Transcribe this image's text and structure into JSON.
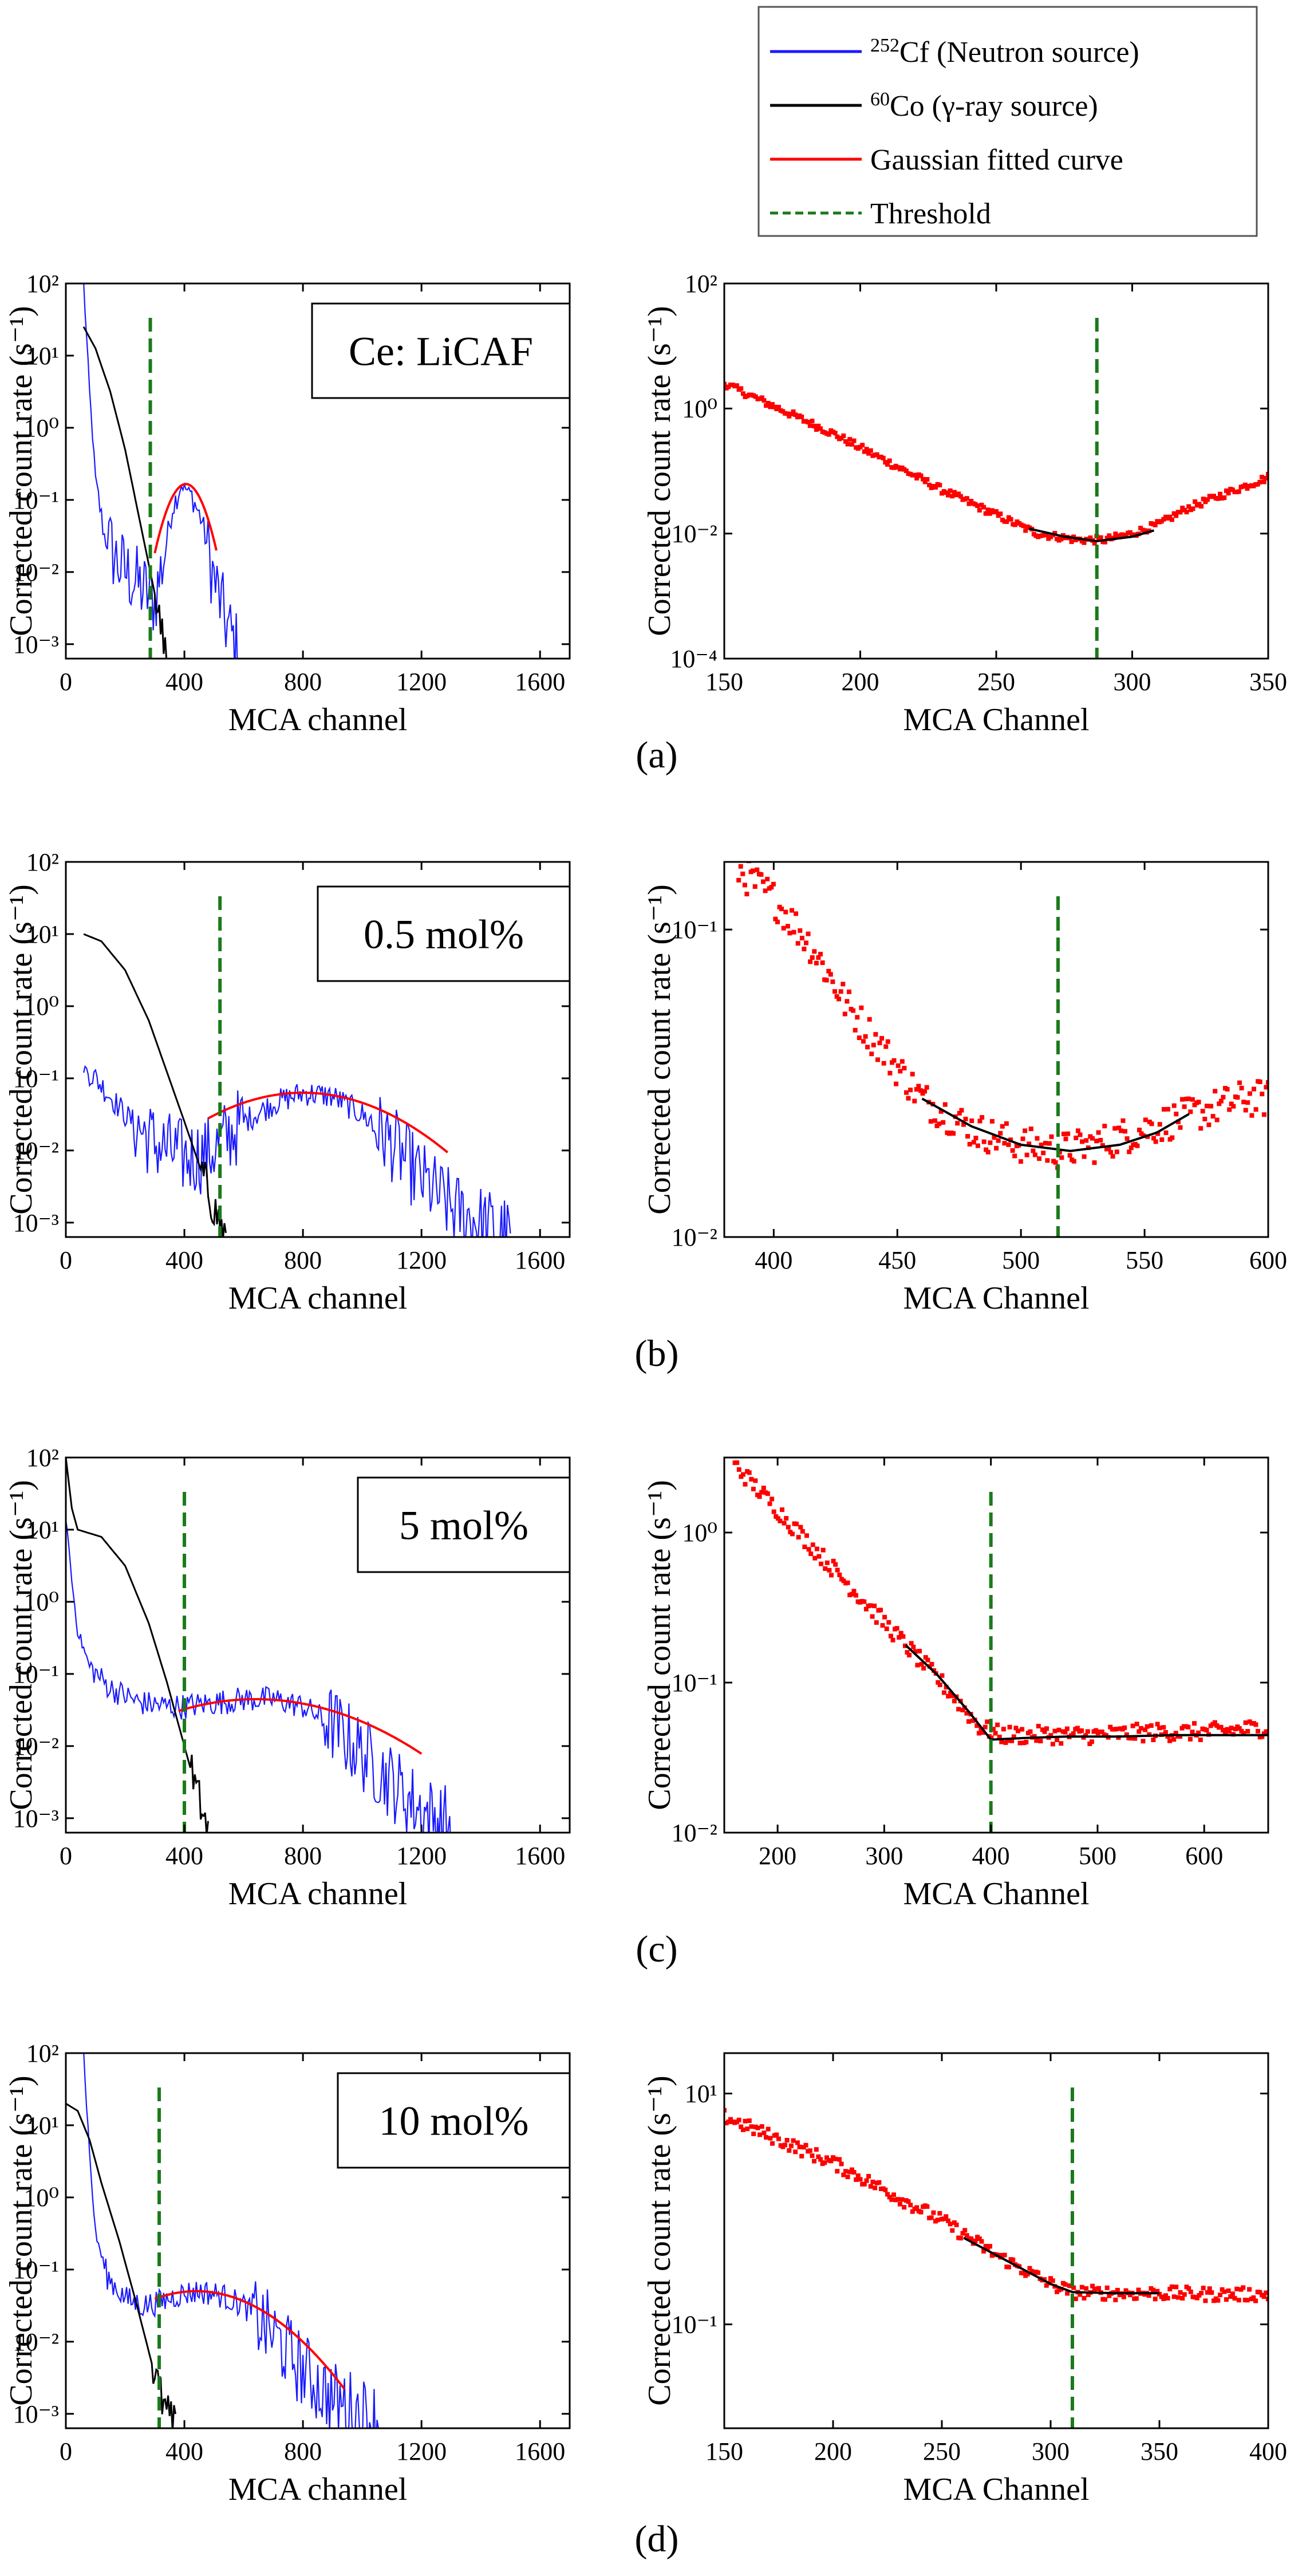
{
  "legend": {
    "items": [
      {
        "sup": "252",
        "text": "Cf (Neutron source)",
        "color": "#1a1aff",
        "style": "solid"
      },
      {
        "sup": "60",
        "text": "Co (γ-ray source)",
        "color": "#000000",
        "style": "solid"
      },
      {
        "sup": "",
        "text": "Gaussian fitted curve",
        "color": "#ff0000",
        "style": "solid"
      },
      {
        "sup": "",
        "text": "Threshold",
        "color": "#1a7a1a",
        "style": "dashed"
      }
    ]
  },
  "colors": {
    "neutron": "#1a1aff",
    "gamma": "#000000",
    "fit": "#ff0000",
    "threshold": "#1a7a1a",
    "points": "#ff0000"
  },
  "chart_data": [
    {
      "id": "a-left",
      "type": "line",
      "panel": "(a)",
      "annotation": "Ce: LiCAF",
      "xlabel": "MCA channel",
      "ylabel": "Corrected count rate (s⁻¹)",
      "xlim": [
        0,
        1700
      ],
      "ylim_log10": [
        -3.2,
        2
      ],
      "xticks": [
        0,
        400,
        800,
        1200,
        1600
      ],
      "yticks": [
        {
          "label": "10⁻³",
          "exp": -3
        },
        {
          "label": "10⁻²",
          "exp": -2
        },
        {
          "label": "10⁻¹",
          "exp": -1
        },
        {
          "label": "10⁰",
          "exp": 0
        },
        {
          "label": "10¹",
          "exp": 1
        },
        {
          "label": "10²",
          "exp": 2
        }
      ],
      "threshold": 285,
      "gamma": {
        "x": [
          60,
          100,
          150,
          200,
          250,
          300,
          340
        ],
        "log10y": [
          1.4,
          1.1,
          0.5,
          -0.3,
          -1.3,
          -2.3,
          -3.2
        ]
      },
      "neutron": {
        "x": [
          60,
          80,
          100,
          130,
          180,
          250,
          300,
          330,
          360,
          390,
          420,
          460,
          500,
          540,
          580
        ],
        "log10y": [
          2.0,
          0.5,
          -0.7,
          -1.5,
          -1.9,
          -2.2,
          -2.4,
          -1.8,
          -1.1,
          -0.8,
          -0.9,
          -1.3,
          -2.1,
          -2.7,
          -3.1
        ]
      },
      "fit": {
        "center": 405,
        "sigma": 50,
        "peak_log10": -0.78,
        "x_range": [
          300,
          510
        ]
      }
    },
    {
      "id": "a-right",
      "type": "scatter",
      "panel": "",
      "xlabel": "MCA Channel",
      "ylabel": "Corrected count rate (s⁻¹)",
      "xlim": [
        150,
        350
      ],
      "ylim_log10": [
        -4,
        2
      ],
      "xticks": [
        150,
        200,
        250,
        300,
        350
      ],
      "yticks": [
        {
          "label": "10⁻⁴",
          "exp": -4
        },
        {
          "label": "10⁻²",
          "exp": -2
        },
        {
          "label": "10⁰",
          "exp": 0
        },
        {
          "label": "10²",
          "exp": 2
        }
      ],
      "threshold": 287,
      "points": {
        "x": [
          150,
          170,
          190,
          210,
          230,
          250,
          265,
          280,
          290,
          300,
          310,
          320,
          335,
          350
        ],
        "log10y": [
          0.4,
          0.0,
          -0.4,
          -0.85,
          -1.3,
          -1.7,
          -2.0,
          -2.1,
          -2.1,
          -2.0,
          -1.85,
          -1.6,
          -1.35,
          -1.1
        ]
      },
      "fit": {
        "x": [
          262,
          275,
          287,
          300,
          308
        ],
        "log10y": [
          -1.92,
          -2.05,
          -2.12,
          -2.05,
          -1.95
        ]
      }
    },
    {
      "id": "b-left",
      "type": "line",
      "panel": "(b)",
      "annotation": "0.5 mol%",
      "xlabel": "MCA channel",
      "ylabel": "Corrected count rate (s⁻¹)",
      "xlim": [
        0,
        1700
      ],
      "ylim_log10": [
        -3.2,
        2
      ],
      "xticks": [
        0,
        400,
        800,
        1200,
        1600
      ],
      "yticks": [
        {
          "label": "10⁻³",
          "exp": -3
        },
        {
          "label": "10⁻²",
          "exp": -2
        },
        {
          "label": "10⁻¹",
          "exp": -1
        },
        {
          "label": "10⁰",
          "exp": 0
        },
        {
          "label": "10¹",
          "exp": 1
        },
        {
          "label": "10²",
          "exp": 2
        }
      ],
      "threshold": 520,
      "gamma": {
        "x": [
          60,
          120,
          200,
          280,
          340,
          400,
          450,
          500,
          540
        ],
        "log10y": [
          1.0,
          0.9,
          0.5,
          -0.2,
          -0.9,
          -1.6,
          -2.2,
          -2.8,
          -3.2
        ]
      },
      "neutron": {
        "x": [
          60,
          100,
          200,
          300,
          400,
          480,
          520,
          600,
          700,
          800,
          900,
          1000,
          1100,
          1200,
          1300,
          1400,
          1500
        ],
        "log10y": [
          -0.85,
          -1.0,
          -1.5,
          -1.9,
          -2.1,
          -2.05,
          -1.9,
          -1.6,
          -1.35,
          -1.2,
          -1.25,
          -1.5,
          -1.9,
          -2.4,
          -2.8,
          -3.0,
          -3.2
        ]
      },
      "fit": {
        "center": 800,
        "sigma": 250,
        "peak_log10": -1.2,
        "x_range": [
          480,
          1290
        ]
      }
    },
    {
      "id": "b-right",
      "type": "scatter",
      "panel": "",
      "xlabel": "MCA Channel",
      "ylabel": "Corrected count rate (s⁻¹)",
      "xlim": [
        380,
        600
      ],
      "ylim_log10": [
        -2,
        -0.78
      ],
      "xticks": [
        400,
        450,
        500,
        550,
        600
      ],
      "yticks": [
        {
          "label": "10⁻²",
          "exp": -2
        },
        {
          "label": "10⁻¹",
          "exp": -1
        }
      ],
      "threshold": 515,
      "points": {
        "x": [
          385,
          400,
          415,
          430,
          445,
          460,
          480,
          500,
          515,
          530,
          550,
          570,
          590,
          600
        ],
        "log10y": [
          -0.8,
          -0.9,
          -1.05,
          -1.25,
          -1.4,
          -1.55,
          -1.65,
          -1.7,
          -1.72,
          -1.7,
          -1.65,
          -1.6,
          -1.55,
          -1.55
        ]
      },
      "fit": {
        "x": [
          460,
          480,
          500,
          520,
          540,
          555,
          568
        ],
        "log10y": [
          -1.55,
          -1.64,
          -1.7,
          -1.72,
          -1.7,
          -1.66,
          -1.6
        ]
      }
    },
    {
      "id": "c-left",
      "type": "line",
      "panel": "(c)",
      "annotation": "5 mol%",
      "xlabel": "MCA channel",
      "ylabel": "Corrected count rate (s⁻¹)",
      "xlim": [
        0,
        1700
      ],
      "ylim_log10": [
        -3.2,
        2
      ],
      "xticks": [
        0,
        400,
        800,
        1200,
        1600
      ],
      "yticks": [
        {
          "label": "10⁻³",
          "exp": -3
        },
        {
          "label": "10⁻²",
          "exp": -2
        },
        {
          "label": "10⁻¹",
          "exp": -1
        },
        {
          "label": "10⁰",
          "exp": 0
        },
        {
          "label": "10¹",
          "exp": 1
        },
        {
          "label": "10²",
          "exp": 2
        }
      ],
      "threshold": 400,
      "gamma": {
        "x": [
          0,
          20,
          40,
          80,
          120,
          200,
          280,
          340,
          400,
          440,
          480
        ],
        "log10y": [
          2.0,
          1.3,
          1.0,
          0.95,
          0.9,
          0.5,
          -0.3,
          -1.1,
          -2.0,
          -2.6,
          -3.2
        ]
      },
      "neutron": {
        "x": [
          0,
          20,
          40,
          80,
          150,
          250,
          350,
          400,
          500,
          600,
          700,
          800,
          900,
          1000,
          1100,
          1200,
          1300
        ],
        "log10y": [
          1.2,
          0.3,
          -0.4,
          -0.9,
          -1.2,
          -1.4,
          -1.45,
          -1.45,
          -1.4,
          -1.35,
          -1.35,
          -1.45,
          -1.7,
          -2.1,
          -2.5,
          -2.9,
          -3.1
        ]
      },
      "fit": {
        "center": 640,
        "sigma": 300,
        "peak_log10": -1.35,
        "x_range": [
          380,
          1200
        ]
      }
    },
    {
      "id": "c-right",
      "type": "scatter",
      "panel": "",
      "xlabel": "MCA Channel",
      "ylabel": "Corrected count rate (s⁻¹)",
      "xlim": [
        150,
        660
      ],
      "ylim_log10": [
        -2,
        0.5
      ],
      "xticks": [
        200,
        300,
        400,
        500,
        600
      ],
      "yticks": [
        {
          "label": "10⁻²",
          "exp": -2
        },
        {
          "label": "10⁻¹",
          "exp": -1
        },
        {
          "label": "10⁰",
          "exp": 0
        }
      ],
      "threshold": 400,
      "points": {
        "x": [
          160,
          200,
          240,
          280,
          320,
          360,
          390,
          410,
          450,
          500,
          550,
          600,
          660
        ],
        "log10y": [
          0.45,
          0.15,
          -0.15,
          -0.45,
          -0.75,
          -1.05,
          -1.3,
          -1.35,
          -1.35,
          -1.35,
          -1.33,
          -1.33,
          -1.3
        ]
      },
      "fit": {
        "x": [
          320,
          350,
          380,
          400,
          430,
          470,
          520,
          570,
          620,
          660
        ],
        "log10y": [
          -0.75,
          -0.95,
          -1.2,
          -1.38,
          -1.37,
          -1.36,
          -1.36,
          -1.35,
          -1.35,
          -1.35
        ]
      }
    },
    {
      "id": "d-left",
      "type": "line",
      "panel": "(d)",
      "annotation": "10 mol%",
      "xlabel": "MCA channel",
      "ylabel": "Corrected count rate (s⁻¹)",
      "xlim": [
        0,
        1700
      ],
      "ylim_log10": [
        -3.2,
        2
      ],
      "xticks": [
        0,
        400,
        800,
        1200,
        1600
      ],
      "yticks": [
        {
          "label": "10⁻³",
          "exp": -3
        },
        {
          "label": "10⁻²",
          "exp": -2
        },
        {
          "label": "10⁻¹",
          "exp": -1
        },
        {
          "label": "10⁰",
          "exp": 0
        },
        {
          "label": "10¹",
          "exp": 1
        },
        {
          "label": "10²",
          "exp": 2
        }
      ],
      "threshold": 315,
      "gamma": {
        "x": [
          0,
          40,
          80,
          120,
          180,
          240,
          290,
          330,
          370
        ],
        "log10y": [
          1.3,
          1.2,
          0.8,
          0.2,
          -0.6,
          -1.5,
          -2.3,
          -2.9,
          -3.2
        ]
      },
      "neutron": {
        "x": [
          60,
          80,
          100,
          140,
          200,
          260,
          320,
          380,
          450,
          520,
          600,
          700,
          800,
          900,
          1000,
          1060
        ],
        "log10y": [
          2.0,
          0.6,
          -0.5,
          -1.1,
          -1.4,
          -1.5,
          -1.45,
          -1.35,
          -1.3,
          -1.35,
          -1.5,
          -1.9,
          -2.4,
          -2.8,
          -3.0,
          -3.1
        ]
      },
      "fit": {
        "center": 440,
        "sigma": 200,
        "peak_log10": -1.3,
        "x_range": [
          300,
          940
        ]
      }
    },
    {
      "id": "d-right",
      "type": "scatter",
      "panel": "",
      "xlabel": "MCA Channel",
      "ylabel": "Corrected count rate (s⁻¹)",
      "xlim": [
        150,
        400
      ],
      "ylim_log10": [
        -1.9,
        1.35
      ],
      "xticks": [
        150,
        200,
        250,
        300,
        350,
        400
      ],
      "yticks": [
        {
          "label": "10⁻¹",
          "exp": -1
        },
        {
          "label": "10¹",
          "exp": 1
        }
      ],
      "threshold": 310,
      "points": {
        "x": [
          150,
          175,
          200,
          225,
          250,
          275,
          300,
          310,
          330,
          350,
          375,
          400
        ],
        "log10y": [
          0.8,
          0.6,
          0.4,
          0.15,
          -0.1,
          -0.4,
          -0.65,
          -0.72,
          -0.73,
          -0.73,
          -0.74,
          -0.74
        ]
      },
      "fit": {
        "x": [
          260,
          280,
          300,
          310,
          330,
          350
        ],
        "log10y": [
          -0.25,
          -0.45,
          -0.65,
          -0.72,
          -0.73,
          -0.73
        ]
      }
    }
  ]
}
